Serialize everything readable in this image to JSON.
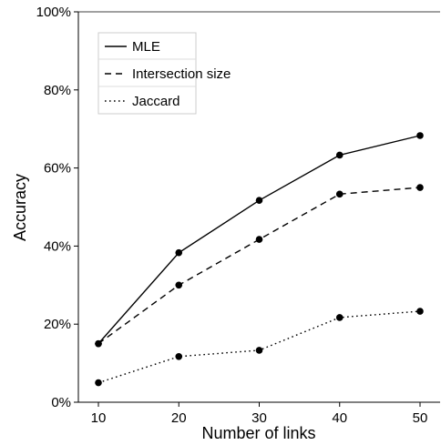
{
  "chart_data": {
    "type": "line",
    "title": "",
    "xlabel": "Number of links",
    "ylabel": "Accuracy",
    "x": [
      10,
      20,
      30,
      40,
      50
    ],
    "x_ticks": [
      "10",
      "20",
      "30",
      "40",
      "50"
    ],
    "ylim": [
      0,
      100
    ],
    "y_ticks": [
      "0%",
      "20%",
      "40%",
      "60%",
      "80%",
      "100%"
    ],
    "grid": false,
    "legend_position": "top-left",
    "series": [
      {
        "name": "MLE",
        "line_style": "solid",
        "values": [
          15,
          38.3,
          51.7,
          63.3,
          68.3
        ]
      },
      {
        "name": "Intersection size",
        "line_style": "dashed",
        "values": [
          15,
          30,
          41.7,
          53.3,
          55
        ]
      },
      {
        "name": "Jaccard",
        "line_style": "dotted",
        "values": [
          5,
          11.7,
          13.3,
          21.7,
          23.3
        ]
      }
    ]
  }
}
